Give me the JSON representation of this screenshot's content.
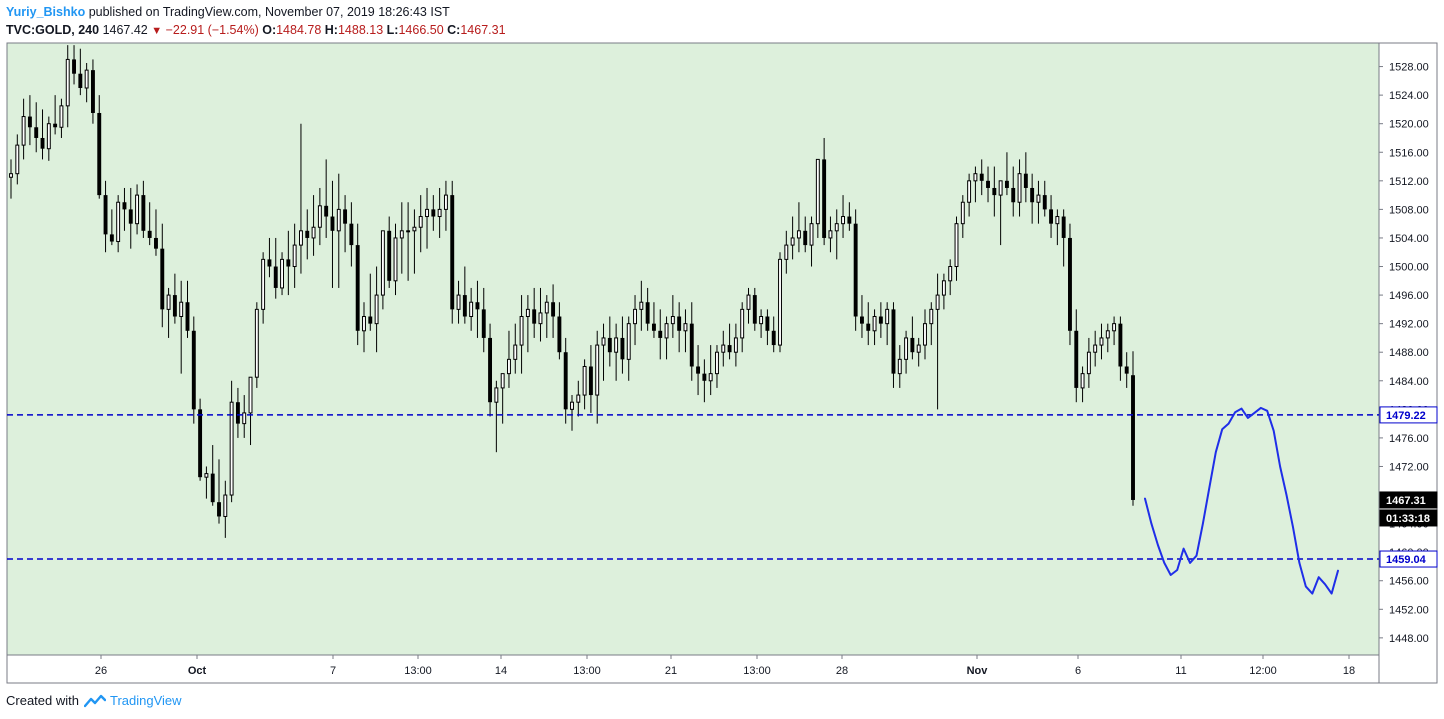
{
  "header": {
    "author": "Yuriy_Bishko",
    "published_text": "published on TradingView.com, November 07, 2019 18:26:43 IST",
    "symbol": "TVC:GOLD, 240",
    "last": "1467.42",
    "change": "−22.91 (−1.54%)",
    "open_label": "O:",
    "open": "1484.78",
    "high_label": "H:",
    "high": "1488.13",
    "low_label": "L:",
    "low": "1466.50",
    "close_label": "C:",
    "close": "1467.31"
  },
  "footer": {
    "created_with": "Created with",
    "brand": "TradingView"
  },
  "colors": {
    "background": "#ddf0dc",
    "candle": "#000000",
    "level_line": "#0000cc",
    "drawing": "#1f2ee8"
  },
  "chart_data": {
    "type": "candlestick",
    "y_axis": {
      "ylim": [
        1445.6,
        1531.3
      ],
      "ticks": [
        1448,
        1452,
        1456,
        1460,
        1464,
        1468,
        1472,
        1476,
        1480,
        1484,
        1488,
        1492,
        1496,
        1500,
        1504,
        1508,
        1512,
        1516,
        1520,
        1524,
        1528
      ],
      "tick_labels": [
        "1448.00",
        "1452.00",
        "1456.00",
        "1460.00",
        "1464.00",
        "1468.00",
        "1472.00",
        "1476.00",
        "1480.00",
        "1484.00",
        "1488.00",
        "1492.00",
        "1496.00",
        "1500.00",
        "1504.00",
        "1508.00",
        "1512.00",
        "1516.00",
        "1520.00",
        "1524.00",
        "1528.00"
      ]
    },
    "x_axis": {
      "labels": [
        "26",
        "Oct",
        "7",
        "13:00",
        "14",
        "13:00",
        "21",
        "13:00",
        "28",
        "Nov",
        "6",
        "11",
        "12:00",
        "18"
      ],
      "bold": [
        false,
        true,
        false,
        false,
        false,
        false,
        false,
        false,
        false,
        true,
        false,
        false,
        false,
        false
      ]
    },
    "candles_ohlc": [
      [
        1512.5,
        1515,
        1509.5,
        1513
      ],
      [
        1513,
        1518.5,
        1511.5,
        1517
      ],
      [
        1517,
        1523.5,
        1515,
        1521
      ],
      [
        1521,
        1524,
        1517,
        1519.5
      ],
      [
        1519.5,
        1523,
        1516,
        1518
      ],
      [
        1518,
        1522,
        1515,
        1516.5
      ],
      [
        1516.5,
        1521,
        1514.8,
        1520
      ],
      [
        1520,
        1524,
        1518.5,
        1519.5
      ],
      [
        1519.5,
        1523.5,
        1518,
        1522.5
      ],
      [
        1522.5,
        1531,
        1519.5,
        1529
      ],
      [
        1529,
        1531,
        1525.5,
        1527
      ],
      [
        1527,
        1530.5,
        1524,
        1525
      ],
      [
        1525,
        1528.5,
        1523,
        1527.5
      ],
      [
        1527.5,
        1529,
        1520,
        1521.5
      ],
      [
        1521.5,
        1524,
        1509.5,
        1510
      ],
      [
        1510,
        1512,
        1502,
        1504.5
      ],
      [
        1504.5,
        1508,
        1503,
        1503.5
      ],
      [
        1503.5,
        1510,
        1502,
        1509
      ],
      [
        1509,
        1511,
        1505,
        1508
      ],
      [
        1508,
        1511,
        1502.5,
        1506
      ],
      [
        1506,
        1511.5,
        1504.5,
        1510
      ],
      [
        1510,
        1512,
        1504,
        1505
      ],
      [
        1505,
        1509,
        1503,
        1504
      ],
      [
        1504,
        1508,
        1501.5,
        1502.5
      ],
      [
        1502.5,
        1506,
        1491.5,
        1494
      ],
      [
        1494,
        1497,
        1490,
        1496
      ],
      [
        1496,
        1499,
        1492,
        1493
      ],
      [
        1493,
        1498,
        1485,
        1495
      ],
      [
        1495,
        1498,
        1490,
        1491
      ],
      [
        1491,
        1493,
        1478,
        1480
      ],
      [
        1480,
        1481.5,
        1470,
        1470.5
      ],
      [
        1470.5,
        1472,
        1467.5,
        1471
      ],
      [
        1471,
        1475,
        1466.5,
        1467
      ],
      [
        1467,
        1473,
        1464,
        1465
      ],
      [
        1465,
        1470,
        1462,
        1468
      ],
      [
        1468,
        1484,
        1467,
        1481
      ],
      [
        1481,
        1483,
        1476,
        1478
      ],
      [
        1478,
        1482,
        1476,
        1479.5
      ],
      [
        1479.5,
        1484,
        1475,
        1484.5
      ],
      [
        1484.5,
        1495,
        1483,
        1494
      ],
      [
        1494,
        1502,
        1492,
        1501
      ],
      [
        1501,
        1504,
        1498.5,
        1500
      ],
      [
        1500,
        1504,
        1495.5,
        1497
      ],
      [
        1497,
        1502,
        1496,
        1501
      ],
      [
        1501,
        1505,
        1496,
        1500
      ],
      [
        1500,
        1506,
        1497,
        1503
      ],
      [
        1503,
        1520,
        1499,
        1505
      ],
      [
        1505,
        1508,
        1501,
        1504
      ],
      [
        1504,
        1510,
        1501.5,
        1505.5
      ],
      [
        1505.5,
        1511,
        1503,
        1508.5
      ],
      [
        1508.5,
        1515,
        1504,
        1507
      ],
      [
        1507,
        1512,
        1497,
        1505
      ],
      [
        1505,
        1513,
        1497,
        1508
      ],
      [
        1508,
        1510,
        1502,
        1506
      ],
      [
        1506,
        1509,
        1500,
        1503
      ],
      [
        1503,
        1506,
        1489,
        1491
      ],
      [
        1491,
        1495,
        1488,
        1493
      ],
      [
        1493,
        1499,
        1491,
        1492
      ],
      [
        1492,
        1500,
        1488,
        1496
      ],
      [
        1496,
        1504,
        1494,
        1505
      ],
      [
        1505,
        1507,
        1497,
        1498
      ],
      [
        1498,
        1506,
        1496,
        1504
      ],
      [
        1504,
        1509,
        1499,
        1505
      ],
      [
        1505,
        1509,
        1498,
        1505
      ],
      [
        1505,
        1508,
        1499,
        1505.5
      ],
      [
        1505.5,
        1510,
        1502,
        1507
      ],
      [
        1507,
        1511,
        1502.5,
        1508
      ],
      [
        1508,
        1510,
        1505,
        1507
      ],
      [
        1507,
        1511,
        1504,
        1508
      ],
      [
        1508,
        1512,
        1505,
        1510
      ],
      [
        1510,
        1512,
        1492,
        1494
      ],
      [
        1494,
        1498,
        1492,
        1496
      ],
      [
        1496,
        1500,
        1492,
        1493
      ],
      [
        1493,
        1497,
        1491,
        1495
      ],
      [
        1495,
        1498,
        1490,
        1494
      ],
      [
        1494,
        1497,
        1488,
        1490
      ],
      [
        1490,
        1492,
        1479,
        1481
      ],
      [
        1481,
        1484,
        1474,
        1483
      ],
      [
        1483,
        1485,
        1478,
        1485
      ],
      [
        1485,
        1491,
        1483,
        1487
      ],
      [
        1487,
        1492,
        1485,
        1489
      ],
      [
        1489,
        1496,
        1485,
        1493
      ],
      [
        1493,
        1496,
        1488,
        1494
      ],
      [
        1494,
        1497,
        1490,
        1492
      ],
      [
        1492,
        1497,
        1489.5,
        1493.5
      ],
      [
        1493.5,
        1496,
        1490,
        1495
      ],
      [
        1495,
        1497.5,
        1490,
        1493
      ],
      [
        1493,
        1495,
        1487,
        1488
      ],
      [
        1488,
        1490,
        1478,
        1480
      ],
      [
        1480,
        1482,
        1477,
        1481
      ],
      [
        1481,
        1484,
        1479,
        1482
      ],
      [
        1482,
        1487,
        1480,
        1486
      ],
      [
        1486,
        1489,
        1479.5,
        1482
      ],
      [
        1482,
        1491,
        1478,
        1489
      ],
      [
        1489,
        1492,
        1484,
        1490
      ],
      [
        1490,
        1493,
        1486,
        1488
      ],
      [
        1488,
        1492,
        1484,
        1490
      ],
      [
        1490,
        1493,
        1485,
        1487
      ],
      [
        1487,
        1493,
        1484,
        1492
      ],
      [
        1492,
        1496,
        1489,
        1494
      ],
      [
        1494,
        1498,
        1491,
        1495
      ],
      [
        1495,
        1497,
        1491,
        1492
      ],
      [
        1492,
        1495,
        1490,
        1491
      ],
      [
        1491,
        1494,
        1487,
        1490
      ],
      [
        1490,
        1493,
        1487,
        1492
      ],
      [
        1492,
        1496,
        1490,
        1493
      ],
      [
        1493,
        1495,
        1488,
        1491
      ],
      [
        1491,
        1494,
        1488,
        1492
      ],
      [
        1492,
        1495,
        1484,
        1486
      ],
      [
        1486,
        1489,
        1482,
        1485
      ],
      [
        1485,
        1487,
        1481,
        1484
      ],
      [
        1484,
        1489,
        1482,
        1485
      ],
      [
        1485,
        1489,
        1483,
        1488
      ],
      [
        1488,
        1491,
        1486,
        1489
      ],
      [
        1489,
        1492,
        1487,
        1488
      ],
      [
        1488,
        1492,
        1486,
        1490
      ],
      [
        1490,
        1495,
        1488,
        1494
      ],
      [
        1494,
        1497,
        1492,
        1496
      ],
      [
        1496,
        1497,
        1491,
        1492
      ],
      [
        1492,
        1494,
        1490,
        1493
      ],
      [
        1493,
        1494,
        1489,
        1491
      ],
      [
        1491,
        1493,
        1488,
        1489
      ],
      [
        1489,
        1502,
        1488,
        1501
      ],
      [
        1501,
        1505,
        1499,
        1503
      ],
      [
        1503,
        1507,
        1501,
        1504
      ],
      [
        1504,
        1509,
        1502,
        1505
      ],
      [
        1505,
        1507,
        1502,
        1503
      ],
      [
        1503,
        1507,
        1500,
        1506
      ],
      [
        1506,
        1512,
        1504,
        1515
      ],
      [
        1515,
        1518,
        1503,
        1504
      ],
      [
        1504,
        1507,
        1502,
        1505
      ],
      [
        1505,
        1508,
        1501,
        1506
      ],
      [
        1506,
        1510,
        1504,
        1507
      ],
      [
        1507,
        1509,
        1505,
        1506
      ],
      [
        1506,
        1508,
        1491,
        1493
      ],
      [
        1493,
        1496,
        1490,
        1492
      ],
      [
        1492,
        1495,
        1489,
        1491
      ],
      [
        1491,
        1494,
        1489,
        1493
      ],
      [
        1493,
        1495,
        1490,
        1492
      ],
      [
        1492,
        1495,
        1489,
        1494
      ],
      [
        1494,
        1495,
        1483,
        1485
      ],
      [
        1485,
        1489,
        1483,
        1487
      ],
      [
        1487,
        1491,
        1485,
        1490
      ],
      [
        1490,
        1493,
        1487,
        1488
      ],
      [
        1488,
        1490,
        1486,
        1489
      ],
      [
        1489,
        1494,
        1487,
        1492
      ],
      [
        1492,
        1495,
        1489,
        1494
      ],
      [
        1494,
        1499,
        1480,
        1496
      ],
      [
        1496,
        1499,
        1494,
        1498
      ],
      [
        1498,
        1501,
        1496,
        1500
      ],
      [
        1500,
        1507,
        1498,
        1506
      ],
      [
        1506,
        1510,
        1504,
        1509
      ],
      [
        1509,
        1513,
        1507,
        1512
      ],
      [
        1512,
        1514,
        1509,
        1513
      ],
      [
        1513,
        1515,
        1510,
        1512
      ],
      [
        1512,
        1514,
        1509,
        1511
      ],
      [
        1511,
        1514,
        1507,
        1510
      ],
      [
        1510,
        1512,
        1503,
        1512
      ],
      [
        1512,
        1516,
        1510,
        1511
      ],
      [
        1511,
        1514,
        1507,
        1509
      ],
      [
        1509,
        1515,
        1507,
        1513
      ],
      [
        1513,
        1516,
        1509,
        1511
      ],
      [
        1511,
        1513,
        1506,
        1509
      ],
      [
        1509,
        1512,
        1506,
        1510
      ],
      [
        1510,
        1512,
        1507,
        1508
      ],
      [
        1508,
        1510,
        1504,
        1506
      ],
      [
        1506,
        1508,
        1503,
        1507
      ],
      [
        1507,
        1508,
        1500,
        1504
      ],
      [
        1504,
        1506,
        1489,
        1491
      ],
      [
        1491,
        1494,
        1481,
        1483
      ],
      [
        1483,
        1486,
        1481,
        1485
      ],
      [
        1485,
        1490,
        1483,
        1488
      ],
      [
        1488,
        1491,
        1486,
        1489
      ],
      [
        1489,
        1492,
        1487,
        1490
      ],
      [
        1490,
        1492,
        1488,
        1491
      ],
      [
        1491,
        1493,
        1489,
        1492
      ],
      [
        1492,
        1493,
        1484,
        1486
      ],
      [
        1486,
        1488,
        1483,
        1485
      ],
      [
        1484.78,
        1488.13,
        1466.5,
        1467.31
      ]
    ],
    "levels": [
      {
        "price": 1479.22,
        "label": "1479.22"
      },
      {
        "price": 1459.04,
        "label": "1459.04"
      }
    ],
    "last_price_label": "1467.31",
    "countdown_label": "01:33:18",
    "drawn_path_prices": [
      1467.5,
      1464,
      1461,
      1458.5,
      1456.8,
      1457.5,
      1460.5,
      1458.5,
      1459.5,
      1464,
      1469,
      1474,
      1477.2,
      1478,
      1479.6,
      1480.1,
      1478.8,
      1479.5,
      1480.2,
      1479.8,
      1477,
      1472,
      1468,
      1463.5,
      1458.5,
      1455.2,
      1454.2,
      1456.5,
      1455.5,
      1454.2,
      1457.4
    ]
  }
}
